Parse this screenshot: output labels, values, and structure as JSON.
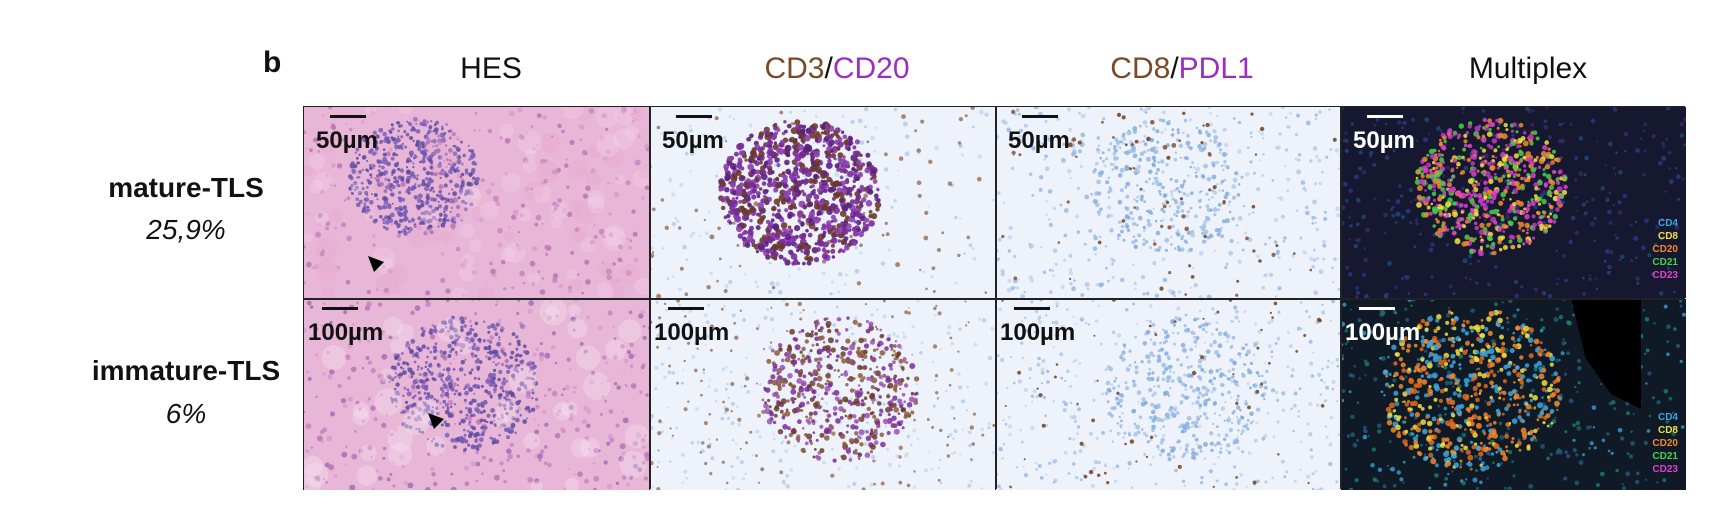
{
  "panel_letter": "b",
  "columns": [
    {
      "parts": [
        {
          "text": "HES",
          "color": "#111111"
        }
      ]
    },
    {
      "parts": [
        {
          "text": "CD3",
          "color": "#7a4a28"
        },
        {
          "text": "/",
          "color": "#111111"
        },
        {
          "text": "CD20",
          "color": "#9b2fc4"
        }
      ]
    },
    {
      "parts": [
        {
          "text": "CD8",
          "color": "#7a4a28"
        },
        {
          "text": "/",
          "color": "#111111"
        },
        {
          "text": "PDL1",
          "color": "#9b2fc4"
        }
      ]
    },
    {
      "parts": [
        {
          "text": "Multiplex",
          "color": "#111111"
        }
      ]
    }
  ],
  "rows": [
    {
      "label": "mature-TLS",
      "percent": "25,9%",
      "scale": "50µm"
    },
    {
      "label": "immature-TLS",
      "percent": "6%",
      "scale": "100µm"
    }
  ],
  "multiplex_legend": [
    {
      "text": "CD4",
      "color": "#3aa7e0"
    },
    {
      "text": "CD8",
      "color": "#f0e040"
    },
    {
      "text": "CD20",
      "color": "#f08a30"
    },
    {
      "text": "CD21",
      "color": "#48d048"
    },
    {
      "text": "CD23",
      "color": "#e040d0"
    }
  ]
}
